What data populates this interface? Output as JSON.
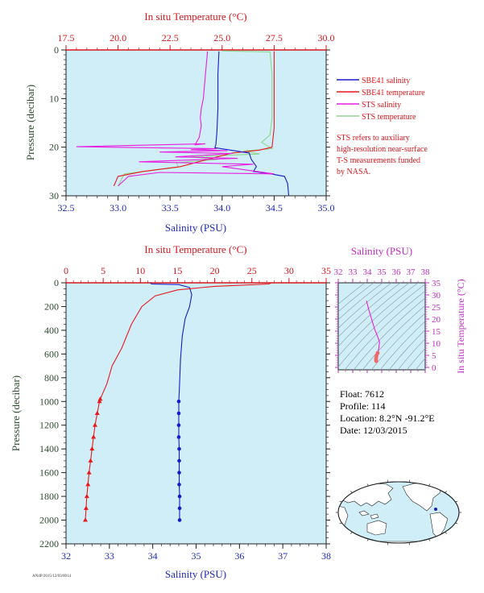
{
  "colors": {
    "salinity": "#1a1acc",
    "temperature": "#e8191c",
    "sts_salinity": "#e81ee0",
    "sts_temperature": "#8fd68f",
    "axis_red": "#d9161c",
    "axis_blue": "#1f2ab8",
    "axis_green": "#2e4a2e",
    "axis_magenta": "#c02bc4",
    "plot_bg": "#d0eef8"
  },
  "info": {
    "float": "Float:  7612",
    "profile": "Profile:  114",
    "location": "Location:  8.2°N  -91.2°E",
    "date": "Date:  12/03/2015"
  },
  "footer_code": "AN4P/2015/12/03/0014",
  "note_lines": [
    "STS refers to auxiliary",
    "high-resolution near-surface",
    "T-S measurements funded",
    "by NASA."
  ],
  "chart_data": [
    {
      "type": "line",
      "title": "In situ Temperature (°C)",
      "xlabel": "Salinity (PSU)",
      "ylabel": "Pressure (decibar)",
      "xlim": [
        32.5,
        35.0
      ],
      "top_xlim": [
        17.5,
        30.0
      ],
      "ylim": [
        0,
        30
      ],
      "x_ticks": [
        "32.5",
        "33.0",
        "33.5",
        "34.0",
        "34.5",
        "35.0"
      ],
      "top_ticks": [
        "17.5",
        "20.0",
        "22.5",
        "25.0",
        "27.5",
        "30.0"
      ],
      "y_ticks": [
        "0",
        "10",
        "20",
        "30"
      ],
      "legend_position": "right",
      "series": [
        {
          "name": "SBE41 salinity",
          "axis": "bottom",
          "points": [
            [
              33.97,
              0.3
            ],
            [
              33.96,
              5
            ],
            [
              33.96,
              12
            ],
            [
              33.95,
              17
            ],
            [
              33.94,
              19.5
            ],
            [
              33.93,
              20.1
            ],
            [
              34.08,
              20.6
            ],
            [
              34.26,
              21.2
            ],
            [
              34.28,
              22.5
            ],
            [
              34.33,
              24
            ],
            [
              34.3,
              25
            ],
            [
              34.47,
              25.5
            ],
            [
              34.6,
              26
            ],
            [
              34.63,
              27.5
            ],
            [
              34.64,
              30
            ]
          ]
        },
        {
          "name": "SBE41 temperature",
          "axis": "top",
          "points": [
            [
              27.5,
              0.3
            ],
            [
              27.5,
              10
            ],
            [
              27.5,
              16
            ],
            [
              27.4,
              20
            ],
            [
              26.8,
              20.6
            ],
            [
              25.5,
              21.2
            ],
            [
              24.3,
              22.5
            ],
            [
              23.0,
              24
            ],
            [
              21.2,
              25
            ],
            [
              20.0,
              26
            ],
            [
              19.8,
              28
            ]
          ]
        },
        {
          "name": "STS salinity",
          "axis": "bottom",
          "points": [
            [
              33.86,
              0.3
            ],
            [
              33.84,
              5
            ],
            [
              33.82,
              10
            ],
            [
              33.8,
              12
            ],
            [
              33.79,
              14
            ],
            [
              33.8,
              15.5
            ],
            [
              33.78,
              18
            ],
            [
              33.74,
              19.5
            ],
            [
              33.84,
              19.3
            ],
            [
              32.6,
              19.9
            ],
            [
              33.95,
              20.3
            ],
            [
              33.7,
              20.5
            ],
            [
              34.05,
              20.7
            ],
            [
              33.4,
              21.0
            ],
            [
              34.1,
              21.3
            ],
            [
              33.55,
              22.0
            ],
            [
              34.15,
              22.3
            ],
            [
              33.2,
              23.0
            ],
            [
              34.3,
              23.5
            ],
            [
              34.0,
              24.0
            ],
            [
              34.5,
              25.5
            ],
            [
              33.4,
              25.2
            ],
            [
              33.1,
              26.0
            ],
            [
              33.0,
              28.0
            ]
          ]
        },
        {
          "name": "STS temperature",
          "axis": "top",
          "points": [
            [
              25.0,
              0.2
            ],
            [
              27.3,
              0.4
            ],
            [
              27.4,
              5
            ],
            [
              27.4,
              14
            ],
            [
              27.3,
              17.5
            ],
            [
              26.9,
              19.0
            ],
            [
              27.4,
              20.3
            ],
            [
              26.0,
              20.8
            ],
            [
              26.8,
              21.4
            ],
            [
              23.5,
              22.0
            ],
            [
              24.8,
              22.5
            ],
            [
              22.8,
              23.2
            ],
            [
              22.9,
              24.1
            ],
            [
              20.3,
              25.5
            ],
            [
              20.0,
              28.0
            ]
          ]
        }
      ]
    },
    {
      "type": "line",
      "title": "In situ Temperature (°C)",
      "xlabel": "Salinity (PSU)",
      "ylabel": "Pressure (decibar)",
      "xlim": [
        32,
        38
      ],
      "top_xlim": [
        0,
        35
      ],
      "ylim": [
        0,
        2200
      ],
      "x_ticks": [
        "32",
        "33",
        "34",
        "35",
        "36",
        "37",
        "38"
      ],
      "top_ticks": [
        "0",
        "5",
        "10",
        "15",
        "20",
        "25",
        "30",
        "35"
      ],
      "y_ticks": [
        "0",
        "200",
        "400",
        "600",
        "800",
        "1000",
        "1200",
        "1400",
        "1600",
        "1800",
        "2000",
        "2200"
      ],
      "series": [
        {
          "axis": "bottom",
          "points": [
            [
              33.95,
              0
            ],
            [
              33.97,
              10
            ],
            [
              34.6,
              15
            ],
            [
              34.85,
              40
            ],
            [
              34.9,
              100
            ],
            [
              34.85,
              200
            ],
            [
              34.75,
              300
            ],
            [
              34.68,
              450
            ],
            [
              34.64,
              650
            ],
            [
              34.62,
              850
            ],
            [
              34.6,
              1000
            ],
            [
              34.6,
              1100
            ],
            [
              34.6,
              1200
            ],
            [
              34.6,
              1300
            ],
            [
              34.61,
              1400
            ],
            [
              34.61,
              1500
            ],
            [
              34.61,
              1600
            ],
            [
              34.61,
              1700
            ],
            [
              34.62,
              1800
            ],
            [
              34.62,
              1900
            ],
            [
              34.62,
              2000
            ]
          ],
          "markers_from": 1000
        },
        {
          "axis": "top",
          "points": [
            [
              27.6,
              0
            ],
            [
              27.3,
              10
            ],
            [
              20,
              30
            ],
            [
              15,
              60
            ],
            [
              12,
              110
            ],
            [
              10.2,
              200
            ],
            [
              8.8,
              350
            ],
            [
              7.5,
              550
            ],
            [
              6.2,
              700
            ],
            [
              5.5,
              850
            ],
            [
              4.6,
              980
            ],
            [
              4.5,
              1000
            ],
            [
              4.2,
              1100
            ],
            [
              3.9,
              1200
            ],
            [
              3.7,
              1300
            ],
            [
              3.5,
              1400
            ],
            [
              3.3,
              1500
            ],
            [
              3.1,
              1600
            ],
            [
              2.95,
              1700
            ],
            [
              2.8,
              1800
            ],
            [
              2.7,
              1900
            ],
            [
              2.6,
              2000
            ]
          ],
          "markers_from": 980
        }
      ]
    },
    {
      "type": "scatter",
      "title": "Salinity (PSU)",
      "ylabel": "In situ Temperature (°C)",
      "xlim": [
        32,
        38
      ],
      "ylim": [
        -1,
        35
      ],
      "x_ticks": [
        "32",
        "33",
        "34",
        "35",
        "36",
        "37",
        "38"
      ],
      "y_ticks": [
        "0",
        "5",
        "10",
        "15",
        "20",
        "25",
        "30",
        "35"
      ],
      "series": [
        {
          "points": [
            [
              33.95,
              27.6
            ],
            [
              34.1,
              24
            ],
            [
              34.3,
              20
            ],
            [
              34.5,
              16
            ],
            [
              34.7,
              13
            ],
            [
              34.85,
              10.5
            ],
            [
              34.8,
              8
            ],
            [
              34.72,
              6
            ],
            [
              34.65,
              5
            ],
            [
              34.62,
              4.2
            ],
            [
              34.61,
              3.6
            ],
            [
              34.61,
              3.0
            ],
            [
              34.62,
              2.6
            ]
          ]
        }
      ]
    }
  ]
}
